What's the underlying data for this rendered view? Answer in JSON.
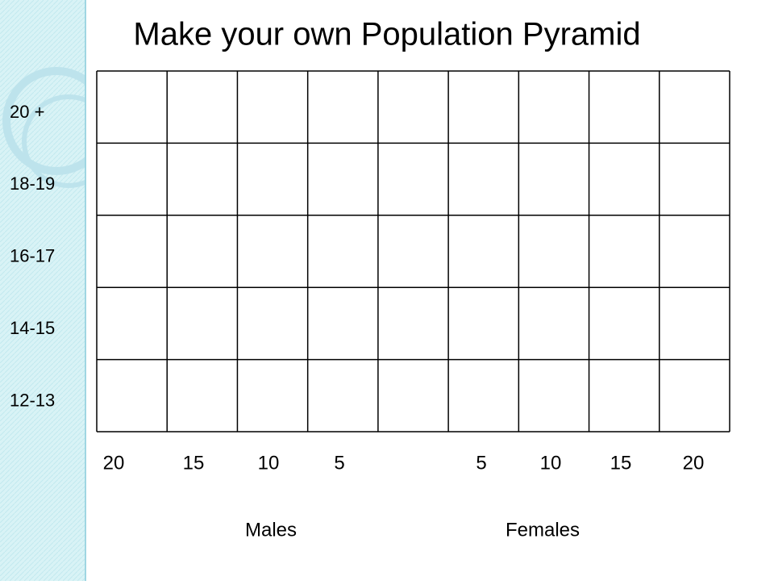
{
  "title": "Make your own Population Pyramid",
  "age_groups": [
    "20 +",
    "18-19",
    "16-17",
    "14-15",
    "12-13"
  ],
  "x_labels": [
    "20",
    "15",
    "10",
    "5",
    "5",
    "10",
    "15",
    "20"
  ],
  "sex_labels": [
    "Males",
    "Females"
  ]
}
